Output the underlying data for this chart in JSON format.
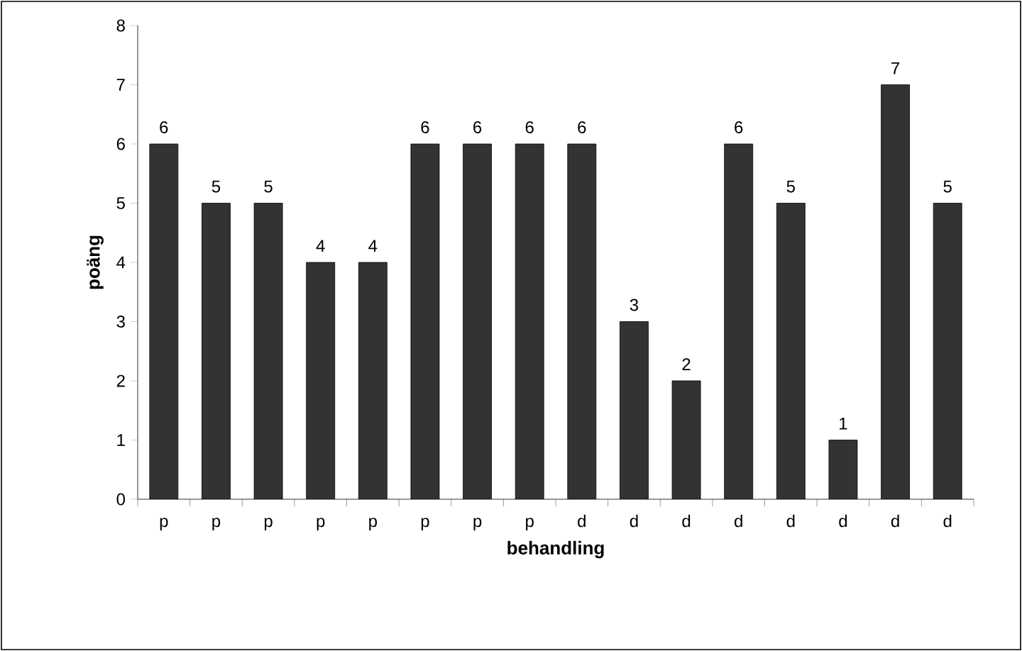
{
  "chart_data": {
    "type": "bar",
    "xlabel": "behandling",
    "ylabel": "poäng",
    "categories": [
      "p",
      "p",
      "p",
      "p",
      "p",
      "p",
      "p",
      "p",
      "d",
      "d",
      "d",
      "d",
      "d",
      "d",
      "d",
      "d"
    ],
    "values": [
      6,
      5,
      5,
      4,
      4,
      6,
      6,
      6,
      6,
      3,
      2,
      6,
      5,
      1,
      7,
      5
    ],
    "color": "#333333",
    "ylim": [
      0,
      8
    ],
    "yticks": [
      0,
      1,
      2,
      3,
      4,
      5,
      6,
      7,
      8
    ],
    "data_labels": true
  }
}
